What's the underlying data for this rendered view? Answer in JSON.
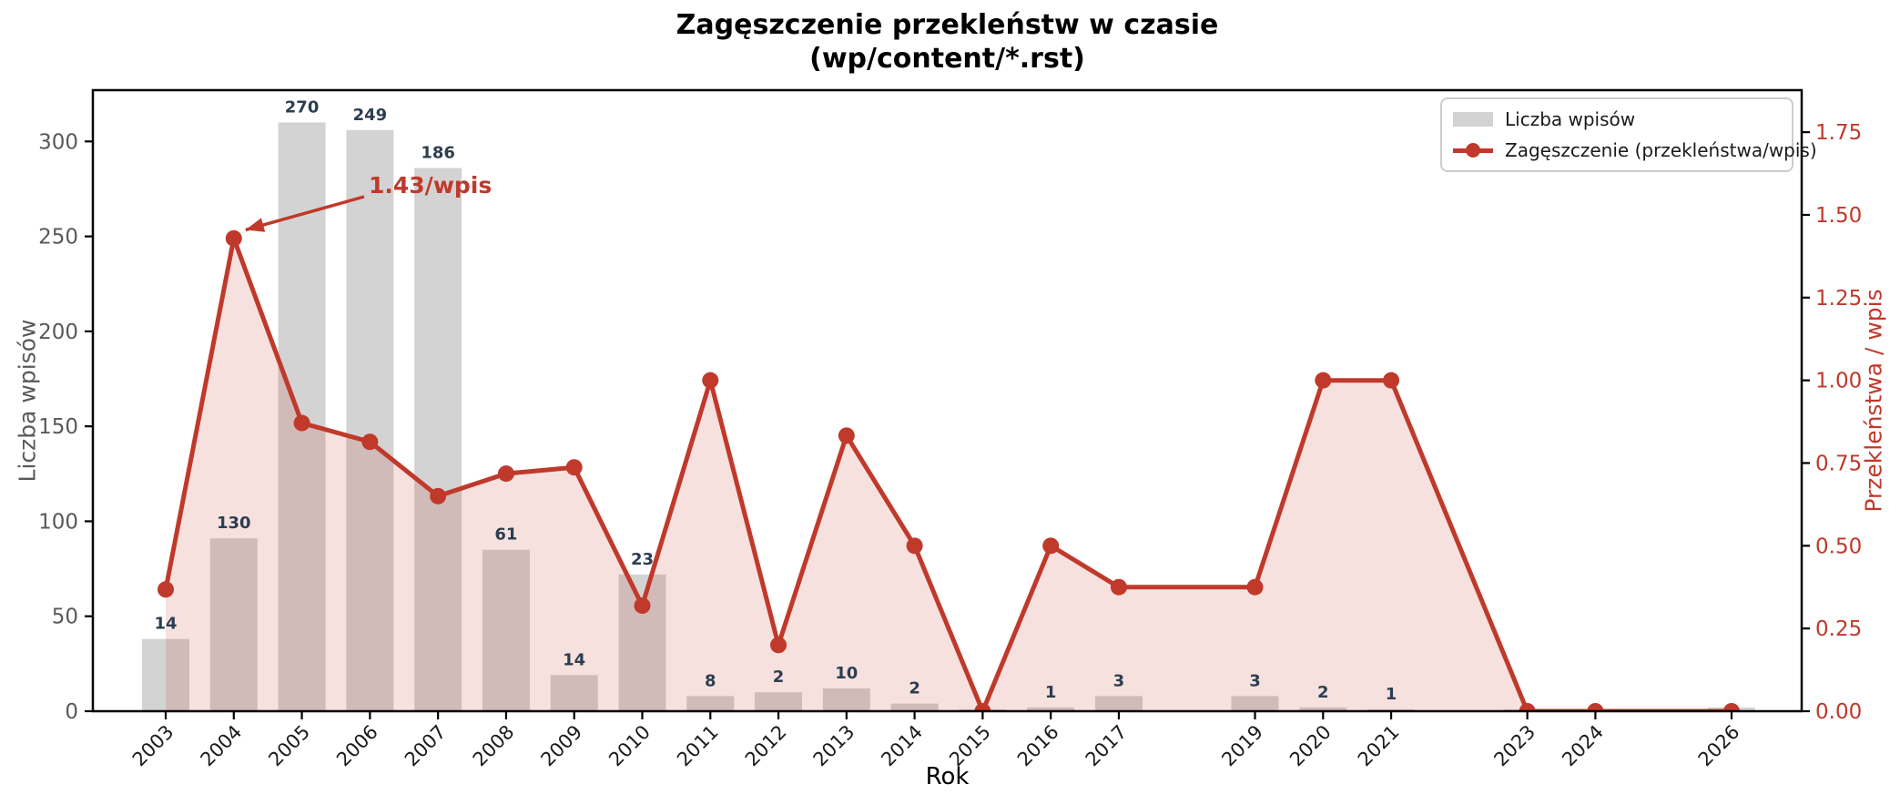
{
  "title": {
    "line1": "Zagęszczenie przekleństw w czasie",
    "line2": "(wp/content/*.rst)"
  },
  "legend": {
    "bars_label": "Liczba wpisów",
    "line_label": "Zagęszczenie (przekleństwa/wpis)"
  },
  "colors": {
    "bar": "#d3d3d3",
    "line": "#c0392b",
    "area": "rgba(192,57,43,0.15)",
    "bar_value_label": "#2c3e50",
    "left_tick_label": "#595959",
    "right_tick_label": "#c0392b",
    "x_tick_label": "#1a1a1a",
    "axis": "#000000",
    "legend_border": "#cccccc"
  },
  "chart_data": {
    "type": "bar+line",
    "title": "Zagęszczenie przekleństw w czasie (wp/content/*.rst)",
    "xlabel": "Rok",
    "x": [
      2003,
      2004,
      2005,
      2006,
      2007,
      2008,
      2009,
      2010,
      2011,
      2012,
      2013,
      2014,
      2015,
      2016,
      2017,
      2019,
      2020,
      2021,
      2023,
      2024,
      2026
    ],
    "series": [
      {
        "name": "Liczba wpisów",
        "type": "bar",
        "axis": "left",
        "values": [
          38,
          91,
          310,
          306,
          286,
          85,
          19,
          72,
          8,
          10,
          12,
          4,
          1,
          2,
          8,
          8,
          2,
          1,
          1,
          1,
          2
        ]
      },
      {
        "name": "Zagęszczenie (przekleństwa/wpis)",
        "type": "line",
        "axis": "right",
        "values": [
          0.368,
          1.429,
          0.871,
          0.814,
          0.65,
          0.718,
          0.737,
          0.319,
          1.0,
          0.2,
          0.833,
          0.5,
          0.0,
          0.5,
          0.375,
          0.375,
          1.0,
          1.0,
          0.0,
          0.0,
          0.0
        ]
      }
    ],
    "bar_top_labels": [
      14,
      130,
      270,
      249,
      186,
      61,
      14,
      23,
      8,
      2,
      10,
      2,
      null,
      1,
      3,
      3,
      2,
      1,
      null,
      null,
      null
    ],
    "left_axis": {
      "label": "Liczba wpisów",
      "ticks": [
        0,
        50,
        100,
        150,
        200,
        250,
        300
      ],
      "lim": [
        0,
        327
      ]
    },
    "right_axis": {
      "label": "Przekleństwa / wpis",
      "ticks": [
        0.0,
        0.25,
        0.5,
        0.75,
        1.0,
        1.25,
        1.5,
        1.75
      ],
      "lim": [
        0,
        1.877
      ]
    },
    "xlim": [
      2001.93,
      2027.03
    ],
    "grid": false,
    "legend_position": "upper right",
    "annotation": {
      "text": "1.43/wpis",
      "target_year": 2004,
      "target_value": 1.43
    }
  }
}
